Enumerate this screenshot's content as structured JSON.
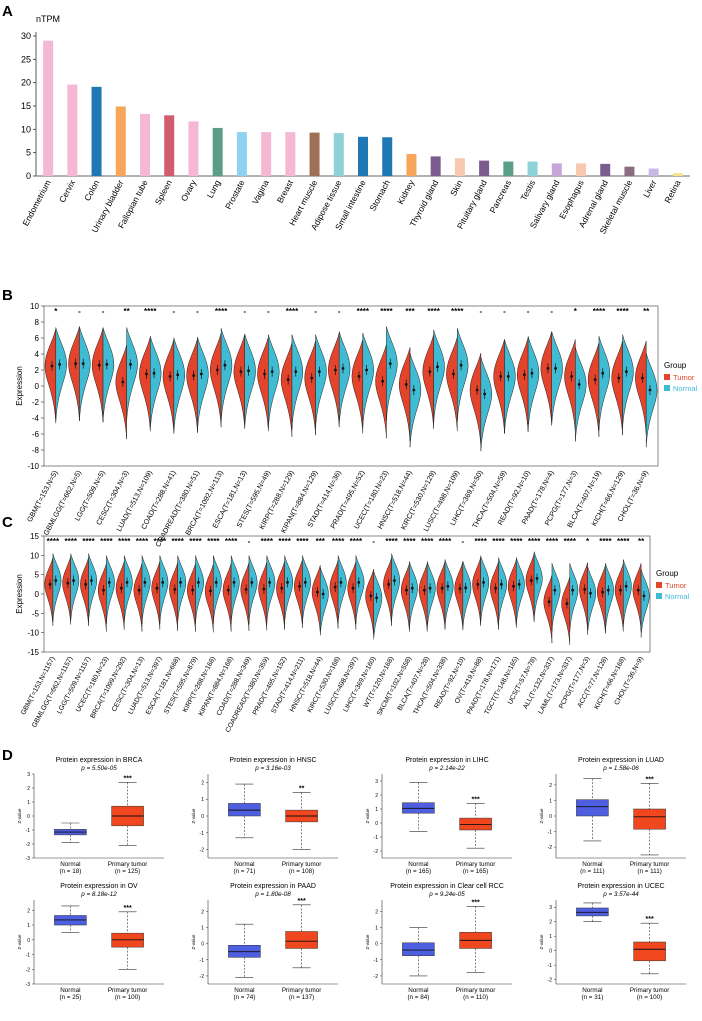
{
  "panels": {
    "A": {
      "label": "A"
    },
    "B": {
      "label": "B"
    },
    "C": {
      "label": "C"
    },
    "D": {
      "label": "D"
    }
  },
  "chart_data": [
    {
      "id": "A",
      "type": "bar",
      "ylabel": "nTPM",
      "ylim": [
        0,
        30
      ],
      "yticks": [
        0,
        5,
        10,
        15,
        20,
        25,
        30
      ],
      "categories": [
        "Endometrium",
        "Cervix",
        "Colon",
        "Urinary bladder",
        "Fallopian tube",
        "Spleen",
        "Ovary",
        "Lung",
        "Prostate",
        "Vagina",
        "Breast",
        "Heart muscle",
        "Adipose tissue",
        "Small intestine",
        "Stomach",
        "Kidney",
        "Thyroid gland",
        "Skin",
        "Pituitary gland",
        "Pancreas",
        "Testis",
        "Salivary gland",
        "Esophagus",
        "Adrenal gland",
        "Skeletal muscle",
        "Liver",
        "Retina"
      ],
      "values": [
        29.0,
        19.6,
        19.1,
        14.9,
        13.3,
        13.0,
        11.7,
        10.3,
        9.4,
        9.4,
        9.4,
        9.3,
        9.2,
        8.4,
        8.3,
        4.7,
        4.2,
        3.8,
        3.3,
        3.1,
        3.1,
        2.7,
        2.7,
        2.6,
        2.0,
        1.6,
        0.6
      ],
      "colors": [
        "#f5b8d4",
        "#f5b8d4",
        "#1f77b4",
        "#f6a55b",
        "#f5b8d4",
        "#d35b6e",
        "#f5b8d4",
        "#5b9e86",
        "#8fd1f1",
        "#f5b8d4",
        "#f5b8d4",
        "#9e7154",
        "#8fd1d8",
        "#1f77b4",
        "#1f77b4",
        "#f6a55b",
        "#7a5c8e",
        "#f6c9b0",
        "#7a5c8e",
        "#5b9e86",
        "#8fd1d8",
        "#c6a5d9",
        "#f6c9b0",
        "#7a5c8e",
        "#8a6d7f",
        "#c7b8e6",
        "#f5e18a"
      ]
    },
    {
      "id": "B",
      "type": "violin",
      "ylabel": "Expression",
      "ylim": [
        -10,
        10
      ],
      "yticks": [
        -10,
        -8,
        -6,
        -4,
        -2,
        0,
        2,
        4,
        6,
        8,
        10
      ],
      "legend": {
        "title": "Group",
        "items": [
          {
            "label": "Tumor",
            "color": "#e4442c"
          },
          {
            "label": "Normal",
            "color": "#3fbcd4"
          }
        ],
        "position": "right"
      },
      "categories": [
        "GBM(T=153,N=5)",
        "GBMLGG(T=662,N=5)",
        "LGG(T=509,N=5)",
        "CESC(T=304,N=3)",
        "LUAD(T=513,N=109)",
        "COAD(T=288,N=41)",
        "COADREAD(T=380,N=51)",
        "BRCA(T=1092,N=113)",
        "ESCA(T=181,N=13)",
        "STES(T=595,N=49)",
        "KIRP(T=288,N=129)",
        "KIPAN(T=884,N=129)",
        "STAD(T=414,N=36)",
        "PRAD(T=495,N=52)",
        "UCEC(T=180,N=23)",
        "HNSC(T=518,N=44)",
        "KIRC(T=530,N=129)",
        "LUSC(T=498,N=109)",
        "LIHC(T=369,N=50)",
        "THCA(T=504,N=59)",
        "READ(T=92,N=10)",
        "PAAD(T=178,N=4)",
        "PCPG(T=177,N=3)",
        "BLCA(T=407,N=19)",
        "KICH(T=66,N=129)",
        "CHOL(T=36,N=9)"
      ],
      "significance": [
        "*",
        "-",
        "-",
        "**",
        "****",
        "-",
        "-",
        "****",
        "-",
        "-",
        "****",
        "-",
        "-",
        "****",
        "****",
        "***",
        "****",
        "****",
        "-",
        "-",
        "-",
        "-",
        "*",
        "****",
        "****",
        "**"
      ],
      "tumor_medians": [
        2.5,
        2.8,
        2.6,
        0.5,
        1.5,
        1.2,
        1.3,
        2.0,
        1.8,
        1.5,
        0.8,
        1.0,
        2.0,
        1.2,
        0.6,
        0.2,
        1.8,
        1.5,
        -0.5,
        1.2,
        1.4,
        2.2,
        1.2,
        0.8,
        1.0,
        1.0
      ],
      "normal_medians": [
        2.7,
        2.8,
        2.7,
        2.7,
        1.6,
        1.4,
        1.5,
        2.6,
        1.9,
        1.8,
        1.8,
        1.8,
        2.2,
        2.0,
        2.8,
        -0.5,
        2.4,
        2.6,
        -1.0,
        1.2,
        1.6,
        2.2,
        0.2,
        1.6,
        1.8,
        -0.5
      ]
    },
    {
      "id": "C",
      "type": "violin",
      "ylabel": "Expression",
      "ylim": [
        -15,
        15
      ],
      "yticks": [
        -15,
        -10,
        -5,
        0,
        5,
        10,
        15
      ],
      "legend": {
        "title": "Group",
        "items": [
          {
            "label": "Tumor",
            "color": "#e4442c"
          },
          {
            "label": "Normal",
            "color": "#3fbcd4"
          }
        ],
        "position": "right"
      },
      "categories": [
        "GBM(T=153,N=1157)",
        "GBMLGG(T=662,N=1157)",
        "LGG(T=509,N=1157)",
        "UCEC(T=180,N=23)",
        "BRCA(T=1099,N=292)",
        "CESC(T=304,N=13)",
        "LUAD(T=513,N=397)",
        "ESCA(T=181,N=668)",
        "STES(T=595,N=879)",
        "KIRP(T=288,N=168)",
        "KIPAN(T=884,N=168)",
        "COAD(T=288,N=349)",
        "COADREAD(T=380,N=359)",
        "PRAD(T=495,N=152)",
        "STAD(T=414,N=211)",
        "HNSC(T=518,N=44)",
        "KIRC(T=530,N=168)",
        "LUSC(T=498,N=397)",
        "LIHC(T=369,N=160)",
        "WT(T=120,N=168)",
        "SKCM(T=102,N=558)",
        "BLCA(T=407,N=28)",
        "THCA(T=504,N=338)",
        "READ(T=92,N=10)",
        "OV(T=419,N=88)",
        "PAAD(T=178,N=171)",
        "TGCT(T=148,N=165)",
        "UCS(T=57,N=78)",
        "ALL(T=132,N=337)",
        "LAML(T=173,N=337)",
        "PCPG(T=177,N=3)",
        "ACC(T=77,N=128)",
        "KICH(T=66,N=168)",
        "CHOL(T=36,N=9)"
      ],
      "significance": [
        "****",
        "****",
        "****",
        "****",
        "****",
        "****",
        "****",
        "****",
        "****",
        "****",
        "****",
        "-",
        "****",
        "****",
        "****",
        "***",
        "****",
        "****",
        "-",
        "****",
        "****",
        "****",
        "****",
        "-",
        "****",
        "****",
        "****",
        "****",
        "****",
        "****",
        "*",
        "****",
        "****",
        "**"
      ],
      "tumor_medians": [
        2.5,
        2.8,
        2.5,
        1.0,
        1.5,
        1.0,
        1.5,
        1.2,
        1.0,
        0.8,
        1.0,
        1.2,
        1.3,
        1.5,
        2.0,
        0.5,
        1.8,
        1.5,
        -0.5,
        2.5,
        1.0,
        1.0,
        1.5,
        1.4,
        2.5,
        1.5,
        2.0,
        3.5,
        -2.0,
        -2.5,
        1.2,
        0.5,
        1.0,
        1.0
      ],
      "normal_medians": [
        3.5,
        3.5,
        3.5,
        3.0,
        3.0,
        3.0,
        3.0,
        3.0,
        3.0,
        3.0,
        3.0,
        3.0,
        3.0,
        3.0,
        3.0,
        0.0,
        3.0,
        3.0,
        -1.0,
        3.5,
        1.5,
        1.5,
        2.0,
        1.6,
        3.0,
        2.5,
        2.5,
        4.0,
        1.0,
        1.0,
        0.2,
        1.0,
        2.0,
        -0.5
      ]
    },
    {
      "id": "D",
      "type": "boxplot",
      "panels": [
        {
          "title": "Protein expression in BRCA",
          "p": "p = 5.50e-05",
          "sig": "***",
          "ylabel": "Z-value",
          "yticks": [
            -3,
            -2,
            -1,
            0,
            1,
            2,
            3
          ],
          "ylim": [
            -3,
            3
          ],
          "groups": [
            {
              "name": "Normal",
              "n": "(n = 18)",
              "color": "#4d5fe0",
              "min": -1.9,
              "q1": -1.35,
              "median": -1.15,
              "q3": -0.95,
              "max": -0.5
            },
            {
              "name": "Primary tumor",
              "n": "(n = 125)",
              "color": "#f0471f",
              "min": -2.1,
              "q1": -0.7,
              "median": 0.0,
              "q3": 0.7,
              "max": 2.4
            }
          ]
        },
        {
          "title": "Protein expression in HNSC",
          "p": "p = 3.16e-03",
          "sig": "**",
          "ylabel": "Z-value",
          "yticks": [
            -2,
            -1,
            0,
            1,
            2
          ],
          "ylim": [
            -2.5,
            2.5
          ],
          "groups": [
            {
              "name": "Normal",
              "n": "(n = 71)",
              "color": "#4d5fe0",
              "min": -1.3,
              "q1": 0.0,
              "median": 0.35,
              "q3": 0.75,
              "max": 1.9
            },
            {
              "name": "Primary tumor",
              "n": "(n = 108)",
              "color": "#f0471f",
              "min": -2.0,
              "q1": -0.35,
              "median": 0.0,
              "q3": 0.35,
              "max": 1.4
            }
          ]
        },
        {
          "title": "Protein expression in LIHC",
          "p": "p = 2.14e-22",
          "sig": "***",
          "ylabel": "Z-value",
          "yticks": [
            -2,
            -1,
            0,
            1,
            2,
            3
          ],
          "ylim": [
            -2.5,
            3.5
          ],
          "groups": [
            {
              "name": "Normal",
              "n": "(n = 165)",
              "color": "#4d5fe0",
              "min": -0.6,
              "q1": 0.7,
              "median": 1.05,
              "q3": 1.45,
              "max": 2.9
            },
            {
              "name": "Primary tumor",
              "n": "(n = 165)",
              "color": "#f0471f",
              "min": -1.8,
              "q1": -0.5,
              "median": -0.1,
              "q3": 0.35,
              "max": 1.4
            }
          ]
        },
        {
          "title": "Protein expression in LUAD",
          "p": "p = 1.58e-06",
          "sig": "***",
          "ylabel": "Z-value",
          "yticks": [
            -2,
            -1,
            0,
            1,
            2
          ],
          "ylim": [
            -2.7,
            2.7
          ],
          "groups": [
            {
              "name": "Normal",
              "n": "(n = 111)",
              "color": "#4d5fe0",
              "min": -1.6,
              "q1": 0.0,
              "median": 0.6,
              "q3": 1.05,
              "max": 2.4
            },
            {
              "name": "Primary tumor",
              "n": "(n = 111)",
              "color": "#f0471f",
              "min": -2.5,
              "q1": -0.85,
              "median": -0.05,
              "q3": 0.45,
              "max": 2.1
            }
          ]
        },
        {
          "title": "Protein expression in OV",
          "p": "p = 8.18e-12",
          "sig": "***",
          "ylabel": "Z-value",
          "yticks": [
            -3,
            -2,
            -1,
            0,
            1,
            2
          ],
          "ylim": [
            -3,
            2.7
          ],
          "groups": [
            {
              "name": "Normal",
              "n": "(n = 25)",
              "color": "#4d5fe0",
              "min": 0.5,
              "q1": 1.0,
              "median": 1.35,
              "q3": 1.65,
              "max": 2.3
            },
            {
              "name": "Primary tumor",
              "n": "(n = 100)",
              "color": "#f0471f",
              "min": -2.0,
              "q1": -0.5,
              "median": 0.0,
              "q3": 0.45,
              "max": 1.9
            }
          ]
        },
        {
          "title": "Protein expression in PAAD",
          "p": "p = 1.80e-08",
          "sig": "***",
          "ylabel": "Z-value",
          "yticks": [
            -2,
            -1,
            0,
            1,
            2
          ],
          "ylim": [
            -2.5,
            2.7
          ],
          "groups": [
            {
              "name": "Normal",
              "n": "(n = 74)",
              "color": "#4d5fe0",
              "min": -2.1,
              "q1": -0.85,
              "median": -0.5,
              "q3": -0.1,
              "max": 1.2
            },
            {
              "name": "Primary tumor",
              "n": "(n = 137)",
              "color": "#f0471f",
              "min": -1.5,
              "q1": -0.3,
              "median": 0.15,
              "q3": 0.75,
              "max": 2.4
            }
          ]
        },
        {
          "title": "Protein expression in Clear cell RCC",
          "p": "p = 9.24e-05",
          "sig": "***",
          "ylabel": "Z-value",
          "yticks": [
            -2,
            -1,
            0,
            1,
            2
          ],
          "ylim": [
            -2.5,
            2.7
          ],
          "groups": [
            {
              "name": "Normal",
              "n": "(n = 84)",
              "color": "#4d5fe0",
              "min": -2.0,
              "q1": -0.75,
              "median": -0.4,
              "q3": 0.05,
              "max": 1.0
            },
            {
              "name": "Primary tumor",
              "n": "(n = 110)",
              "color": "#f0471f",
              "min": -1.8,
              "q1": -0.3,
              "median": 0.2,
              "q3": 0.7,
              "max": 2.3
            }
          ]
        },
        {
          "title": "Protein expression in UCEC",
          "p": "p = 3.57e-44",
          "sig": "***",
          "ylabel": "Z-value",
          "yticks": [
            -2,
            -1,
            0,
            1,
            2,
            3
          ],
          "ylim": [
            -2.3,
            3.5
          ],
          "groups": [
            {
              "name": "Normal",
              "n": "(n = 31)",
              "color": "#4d5fe0",
              "min": 2.0,
              "q1": 2.4,
              "median": 2.65,
              "q3": 2.95,
              "max": 3.3
            },
            {
              "name": "Primary tumor",
              "n": "(n = 100)",
              "color": "#f0471f",
              "min": -1.6,
              "q1": -0.7,
              "median": 0.1,
              "q3": 0.6,
              "max": 1.9
            }
          ]
        }
      ]
    }
  ]
}
